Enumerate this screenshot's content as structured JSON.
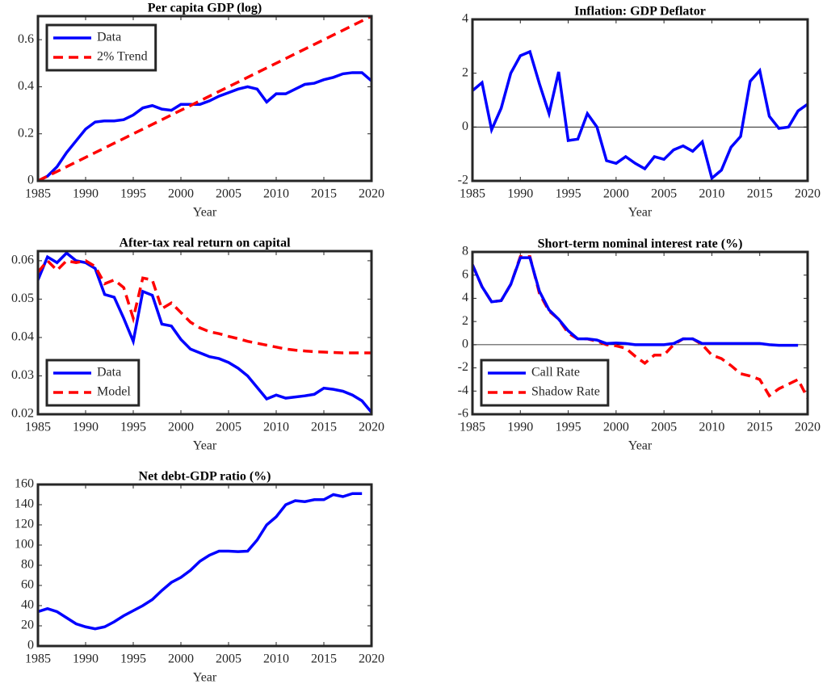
{
  "chart_data": [
    {
      "type": "line",
      "title": "Per capita GDP (log)",
      "xlabel": "Year",
      "x": [
        1985,
        1986,
        1987,
        1988,
        1989,
        1990,
        1991,
        1992,
        1993,
        1994,
        1995,
        1996,
        1997,
        1998,
        1999,
        2000,
        2001,
        2002,
        2003,
        2004,
        2005,
        2006,
        2007,
        2008,
        2009,
        2010,
        2011,
        2012,
        2013,
        2014,
        2015,
        2016,
        2017,
        2018,
        2019,
        2020
      ],
      "series": [
        {
          "name": "Data",
          "color": "#0000ff",
          "linestyle": "solid",
          "values": [
            0,
            0.02,
            0.06,
            0.12,
            0.17,
            0.22,
            0.25,
            0.255,
            0.255,
            0.26,
            0.28,
            0.31,
            0.32,
            0.305,
            0.3,
            0.325,
            0.325,
            0.325,
            0.34,
            0.36,
            0.375,
            0.39,
            0.4,
            0.39,
            0.335,
            0.37,
            0.37,
            0.39,
            0.41,
            0.415,
            0.43,
            0.44,
            0.455,
            0.46,
            0.46,
            0.425
          ]
        },
        {
          "name": "2% Trend",
          "color": "#ff0000",
          "linestyle": "dashed",
          "x": [
            1985,
            2020
          ],
          "values": [
            0,
            0.7
          ]
        }
      ],
      "xlim": [
        1985,
        2020
      ],
      "xticks": [
        1985,
        1990,
        1995,
        2000,
        2005,
        2010,
        2015,
        2020
      ],
      "ylim": [
        0,
        0.7
      ],
      "yticks": [
        0,
        0.2,
        0.4,
        0.6
      ],
      "legend": "upper-left",
      "zero_line": false
    },
    {
      "type": "line",
      "title": "Inflation: GDP Deflator",
      "xlabel": "Year",
      "x": [
        1985,
        1986,
        1987,
        1988,
        1989,
        1990,
        1991,
        1992,
        1993,
        1994,
        1995,
        1996,
        1997,
        1998,
        1999,
        2000,
        2001,
        2002,
        2003,
        2004,
        2005,
        2006,
        2007,
        2008,
        2009,
        2010,
        2011,
        2012,
        2013,
        2014,
        2015,
        2016,
        2017,
        2018,
        2019,
        2020
      ],
      "series": [
        {
          "name": null,
          "color": "#0000ff",
          "linestyle": "solid",
          "values": [
            1.35,
            1.65,
            -0.1,
            0.7,
            2.0,
            2.65,
            2.8,
            1.6,
            0.5,
            2.05,
            -0.5,
            -0.45,
            0.5,
            0.0,
            -1.25,
            -1.35,
            -1.1,
            -1.35,
            -1.55,
            -1.1,
            -1.2,
            -0.85,
            -0.7,
            -0.9,
            -0.55,
            -1.9,
            -1.6,
            -0.75,
            -0.35,
            1.7,
            2.1,
            0.4,
            -0.05,
            0.0,
            0.6,
            0.85
          ]
        }
      ],
      "xlim": [
        1985,
        2020
      ],
      "xticks": [
        1985,
        1990,
        1995,
        2000,
        2005,
        2010,
        2015,
        2020
      ],
      "ylim": [
        -2,
        4
      ],
      "yticks": [
        -2,
        0,
        2,
        4
      ],
      "legend": null,
      "zero_line": true
    },
    {
      "type": "line",
      "title": "After-tax real return on capital",
      "xlabel": "Year",
      "x": [
        1985,
        1986,
        1987,
        1988,
        1989,
        1990,
        1991,
        1992,
        1993,
        1994,
        1995,
        1996,
        1997,
        1998,
        1999,
        2000,
        2001,
        2002,
        2003,
        2004,
        2005,
        2006,
        2007,
        2008,
        2009,
        2010,
        2011,
        2012,
        2013,
        2014,
        2015,
        2016,
        2017,
        2018,
        2019,
        2020
      ],
      "series": [
        {
          "name": "Data",
          "color": "#0000ff",
          "linestyle": "solid",
          "values": [
            0.055,
            0.061,
            0.0595,
            0.062,
            0.06,
            0.0595,
            0.058,
            0.0512,
            0.0505,
            0.045,
            0.039,
            0.052,
            0.051,
            0.0435,
            0.043,
            0.0395,
            0.037,
            0.036,
            0.035,
            0.0345,
            0.0335,
            0.032,
            0.03,
            0.027,
            0.024,
            0.025,
            0.0242,
            0.0245,
            0.0248,
            0.0252,
            0.0268,
            0.0265,
            0.026,
            0.025,
            0.0235,
            0.0205
          ]
        },
        {
          "name": "Model",
          "color": "#ff0000",
          "linestyle": "dashed",
          "values": [
            0.057,
            0.06,
            0.0575,
            0.06,
            0.0595,
            0.06,
            0.0585,
            0.054,
            0.055,
            0.053,
            0.045,
            0.0555,
            0.055,
            0.0475,
            0.049,
            0.0465,
            0.044,
            0.0425,
            0.0415,
            0.041,
            0.0403,
            0.0397,
            0.039,
            0.0385,
            0.038,
            0.0375,
            0.037,
            0.0367,
            0.0365,
            0.0363,
            0.0362,
            0.0361,
            0.036,
            0.036,
            0.036,
            0.036
          ]
        }
      ],
      "xlim": [
        1985,
        2020
      ],
      "xticks": [
        1985,
        1990,
        1995,
        2000,
        2005,
        2010,
        2015,
        2020
      ],
      "ylim": [
        0.02,
        0.0625
      ],
      "yticks": [
        0.02,
        0.03,
        0.04,
        0.05,
        0.06
      ],
      "legend": "lower-left",
      "zero_line": false
    },
    {
      "type": "line",
      "title": "Short-term nominal interest rate (%)",
      "xlabel": "Year",
      "x": [
        1985,
        1986,
        1987,
        1988,
        1989,
        1990,
        1991,
        1992,
        1993,
        1994,
        1995,
        1996,
        1997,
        1998,
        1999,
        2000,
        2001,
        2002,
        2003,
        2004,
        2005,
        2006,
        2007,
        2008,
        2009,
        2010,
        2011,
        2012,
        2013,
        2014,
        2015,
        2016,
        2017,
        2018,
        2019,
        2020
      ],
      "series": [
        {
          "name": "Shadow Rate",
          "color": "#ff0000",
          "linestyle": "dashed",
          "values": [
            6.9,
            5.0,
            3.7,
            3.8,
            5.2,
            7.6,
            7.6,
            4.4,
            2.9,
            2.2,
            1.0,
            0.5,
            0.5,
            0.3,
            0.0,
            -0.1,
            -0.3,
            -1.0,
            -1.6,
            -0.9,
            -0.9,
            0.0,
            0.5,
            0.5,
            0.0,
            -0.9,
            -1.2,
            -1.8,
            -2.5,
            -2.7,
            -3.0,
            -4.4,
            -3.8,
            -3.4,
            -3.0,
            -4.6
          ]
        },
        {
          "name": "Call Rate",
          "color": "#0000ff",
          "linestyle": "solid",
          "values": [
            6.9,
            5.0,
            3.7,
            3.8,
            5.2,
            7.5,
            7.5,
            4.6,
            3.0,
            2.2,
            1.2,
            0.5,
            0.5,
            0.4,
            0.1,
            0.15,
            0.1,
            0.0,
            0.0,
            0.0,
            0.0,
            0.1,
            0.5,
            0.5,
            0.1,
            0.1,
            0.1,
            0.1,
            0.1,
            0.1,
            0.1,
            0.0,
            -0.05,
            -0.05,
            -0.05,
            null
          ]
        }
      ],
      "legend_order": [
        1,
        0
      ],
      "xlim": [
        1985,
        2020
      ],
      "xticks": [
        1985,
        1990,
        1995,
        2000,
        2005,
        2010,
        2015,
        2020
      ],
      "ylim": [
        -6,
        8
      ],
      "yticks": [
        -6,
        -4,
        -2,
        0,
        2,
        4,
        6,
        8
      ],
      "legend": "lower-left",
      "zero_line": true
    },
    {
      "type": "line",
      "title": "Net debt-GDP ratio (%)",
      "xlabel": "Year",
      "x": [
        1985,
        1986,
        1987,
        1988,
        1989,
        1990,
        1991,
        1992,
        1993,
        1994,
        1995,
        1996,
        1997,
        1998,
        1999,
        2000,
        2001,
        2002,
        2003,
        2004,
        2005,
        2006,
        2007,
        2008,
        2009,
        2010,
        2011,
        2012,
        2013,
        2014,
        2015,
        2016,
        2017,
        2018,
        2019,
        2020
      ],
      "series": [
        {
          "name": null,
          "color": "#0000ff",
          "linestyle": "solid",
          "values": [
            34,
            37,
            34,
            28,
            22,
            19,
            17,
            19,
            24,
            30,
            35,
            40,
            46,
            55,
            63,
            68,
            75,
            84,
            90,
            94,
            94,
            93.5,
            94,
            105,
            120,
            128,
            140,
            144,
            143,
            145,
            145,
            150,
            148,
            151,
            151,
            null
          ]
        }
      ],
      "xlim": [
        1985,
        2020
      ],
      "xticks": [
        1985,
        1990,
        1995,
        2000,
        2005,
        2010,
        2015,
        2020
      ],
      "ylim": [
        0,
        160
      ],
      "yticks": [
        0,
        20,
        40,
        60,
        80,
        100,
        120,
        140,
        160
      ],
      "legend": null,
      "zero_line": false
    }
  ]
}
